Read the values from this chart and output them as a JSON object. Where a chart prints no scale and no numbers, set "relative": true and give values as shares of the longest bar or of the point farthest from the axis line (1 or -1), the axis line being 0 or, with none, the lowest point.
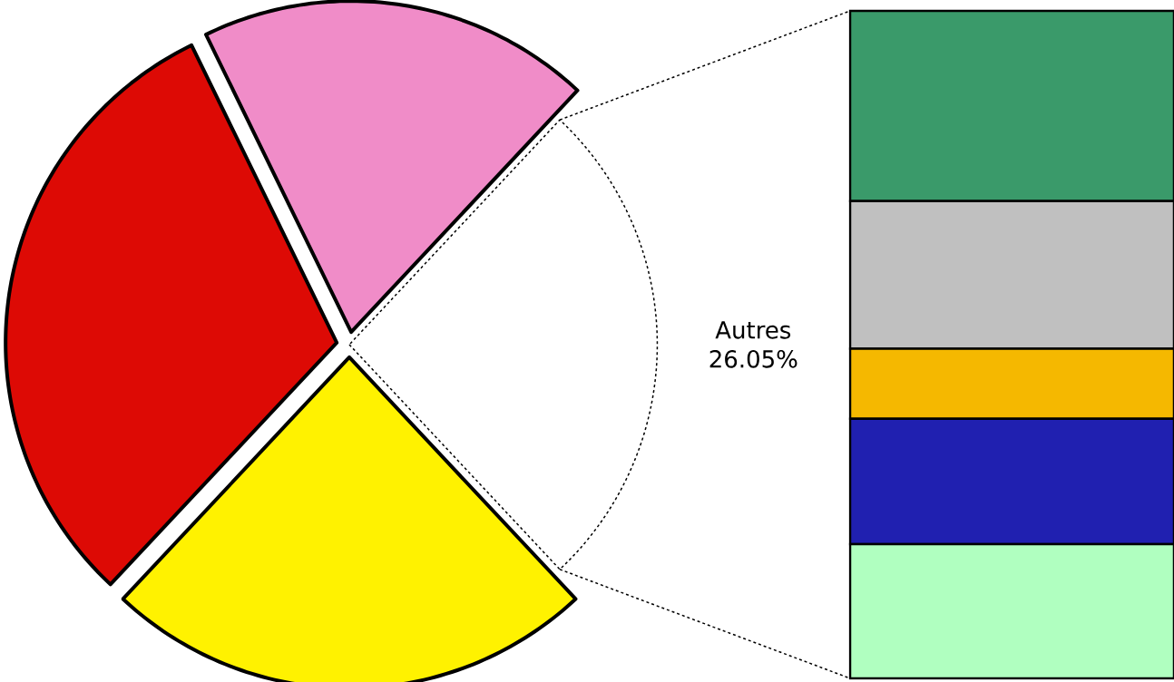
{
  "chart_data": [
    {
      "type": "pie",
      "categories": [
        "Autres",
        null,
        null,
        null
      ],
      "values": [
        26.05,
        19.2,
        30.8,
        23.95
      ],
      "colors": [
        "#ffffff",
        "#f08cc8",
        "#dd0a05",
        "#fff200"
      ],
      "value_labels": [
        "26.05%",
        null,
        null,
        null
      ]
    },
    {
      "type": "bar",
      "stacked": true,
      "relative": true,
      "categories": [
        null
      ],
      "series": [
        {
          "color": "#b0ffc0",
          "values": [
            0.201
          ]
        },
        {
          "color": "#2020b0",
          "values": [
            0.188
          ]
        },
        {
          "color": "#f5b800",
          "values": [
            0.105
          ]
        },
        {
          "color": "#c0c0c0",
          "values": [
            0.221
          ]
        },
        {
          "color": "#3a9a6a",
          "values": [
            0.285
          ]
        }
      ]
    }
  ]
}
